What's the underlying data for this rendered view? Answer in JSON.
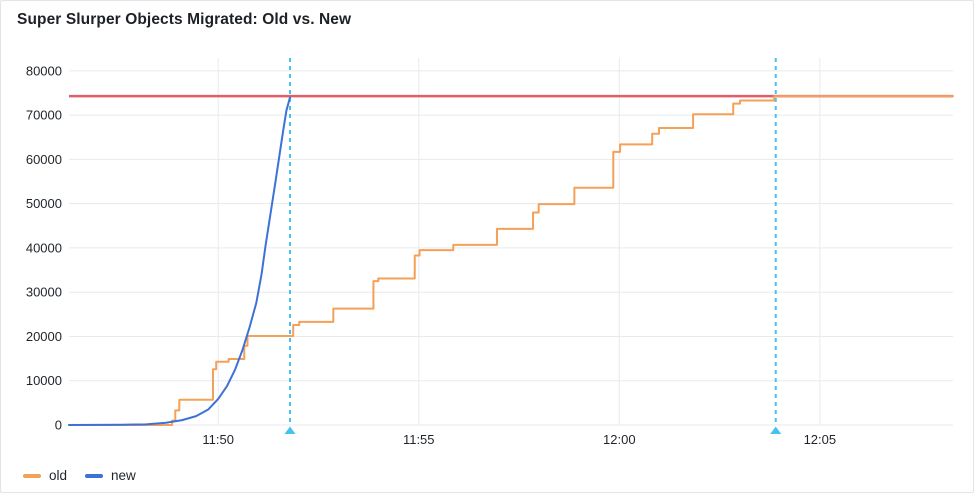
{
  "panel": {
    "title": "Super Slurper Objects Migrated: Old vs. New"
  },
  "chart_data": {
    "type": "line",
    "title": "Super Slurper Objects Migrated: Old vs. New",
    "xlabel": "",
    "ylabel": "",
    "grid": true,
    "legend_position": "bottom-left",
    "x_axis": {
      "unit": "time (HH:MM)",
      "ticks": [
        "11:50",
        "11:55",
        "12:00",
        "12:05"
      ],
      "tick_minutes": [
        50,
        55,
        60,
        65
      ],
      "range_minutes": [
        46.28,
        68.32
      ]
    },
    "y_axis": {
      "ticks": [
        0,
        10000,
        20000,
        30000,
        40000,
        50000,
        60000,
        70000,
        80000
      ],
      "range": [
        0,
        82900
      ]
    },
    "threshold": {
      "value": 74300,
      "color": "#e25d66"
    },
    "annotations": {
      "color": "#45c3ee",
      "style": "dashed-vertical",
      "times": [
        "11:51:47",
        "12:03:54"
      ],
      "times_minutes": [
        51.79,
        63.9
      ]
    },
    "series": [
      {
        "name": "old",
        "color": "#f5a057",
        "mode": "step",
        "points": [
          [
            46.28,
            0
          ],
          [
            48.85,
            1000
          ],
          [
            48.93,
            3300
          ],
          [
            49.03,
            5700
          ],
          [
            49.87,
            12600
          ],
          [
            49.95,
            14300
          ],
          [
            50.26,
            14900
          ],
          [
            50.65,
            17900
          ],
          [
            50.73,
            20100
          ],
          [
            51.87,
            22600
          ],
          [
            52.02,
            23300
          ],
          [
            52.87,
            26300
          ],
          [
            53.87,
            32500
          ],
          [
            53.99,
            33100
          ],
          [
            54.9,
            38300
          ],
          [
            55.02,
            39500
          ],
          [
            55.86,
            40700
          ],
          [
            56.95,
            44300
          ],
          [
            57.85,
            48000
          ],
          [
            57.99,
            49900
          ],
          [
            58.88,
            53600
          ],
          [
            59.85,
            61700
          ],
          [
            60.02,
            63400
          ],
          [
            60.82,
            65800
          ],
          [
            60.99,
            67100
          ],
          [
            61.84,
            70200
          ],
          [
            62.84,
            72600
          ],
          [
            63.01,
            73300
          ],
          [
            63.86,
            74300
          ],
          [
            68.32,
            74300
          ]
        ]
      },
      {
        "name": "new",
        "color": "#3c72d8",
        "mode": "line",
        "points": [
          [
            46.28,
            0
          ],
          [
            47.6,
            50
          ],
          [
            48.2,
            150
          ],
          [
            48.7,
            500
          ],
          [
            49.1,
            1100
          ],
          [
            49.45,
            2000
          ],
          [
            49.75,
            3500
          ],
          [
            50.0,
            5900
          ],
          [
            50.22,
            8800
          ],
          [
            50.42,
            12500
          ],
          [
            50.6,
            16800
          ],
          [
            50.78,
            22000
          ],
          [
            50.95,
            27600
          ],
          [
            51.08,
            34000
          ],
          [
            51.18,
            40500
          ],
          [
            51.3,
            47500
          ],
          [
            51.42,
            54500
          ],
          [
            51.52,
            60500
          ],
          [
            51.62,
            66500
          ],
          [
            51.7,
            71000
          ],
          [
            51.79,
            74000
          ]
        ]
      }
    ]
  },
  "legend": {
    "items": [
      {
        "label": "old",
        "color": "#f5a057"
      },
      {
        "label": "new",
        "color": "#3c72d8"
      }
    ]
  },
  "colors": {
    "grid": "#e9eaec",
    "text": "#1f242b",
    "panel_border": "#e2e5e8",
    "background": "#ffffff"
  }
}
